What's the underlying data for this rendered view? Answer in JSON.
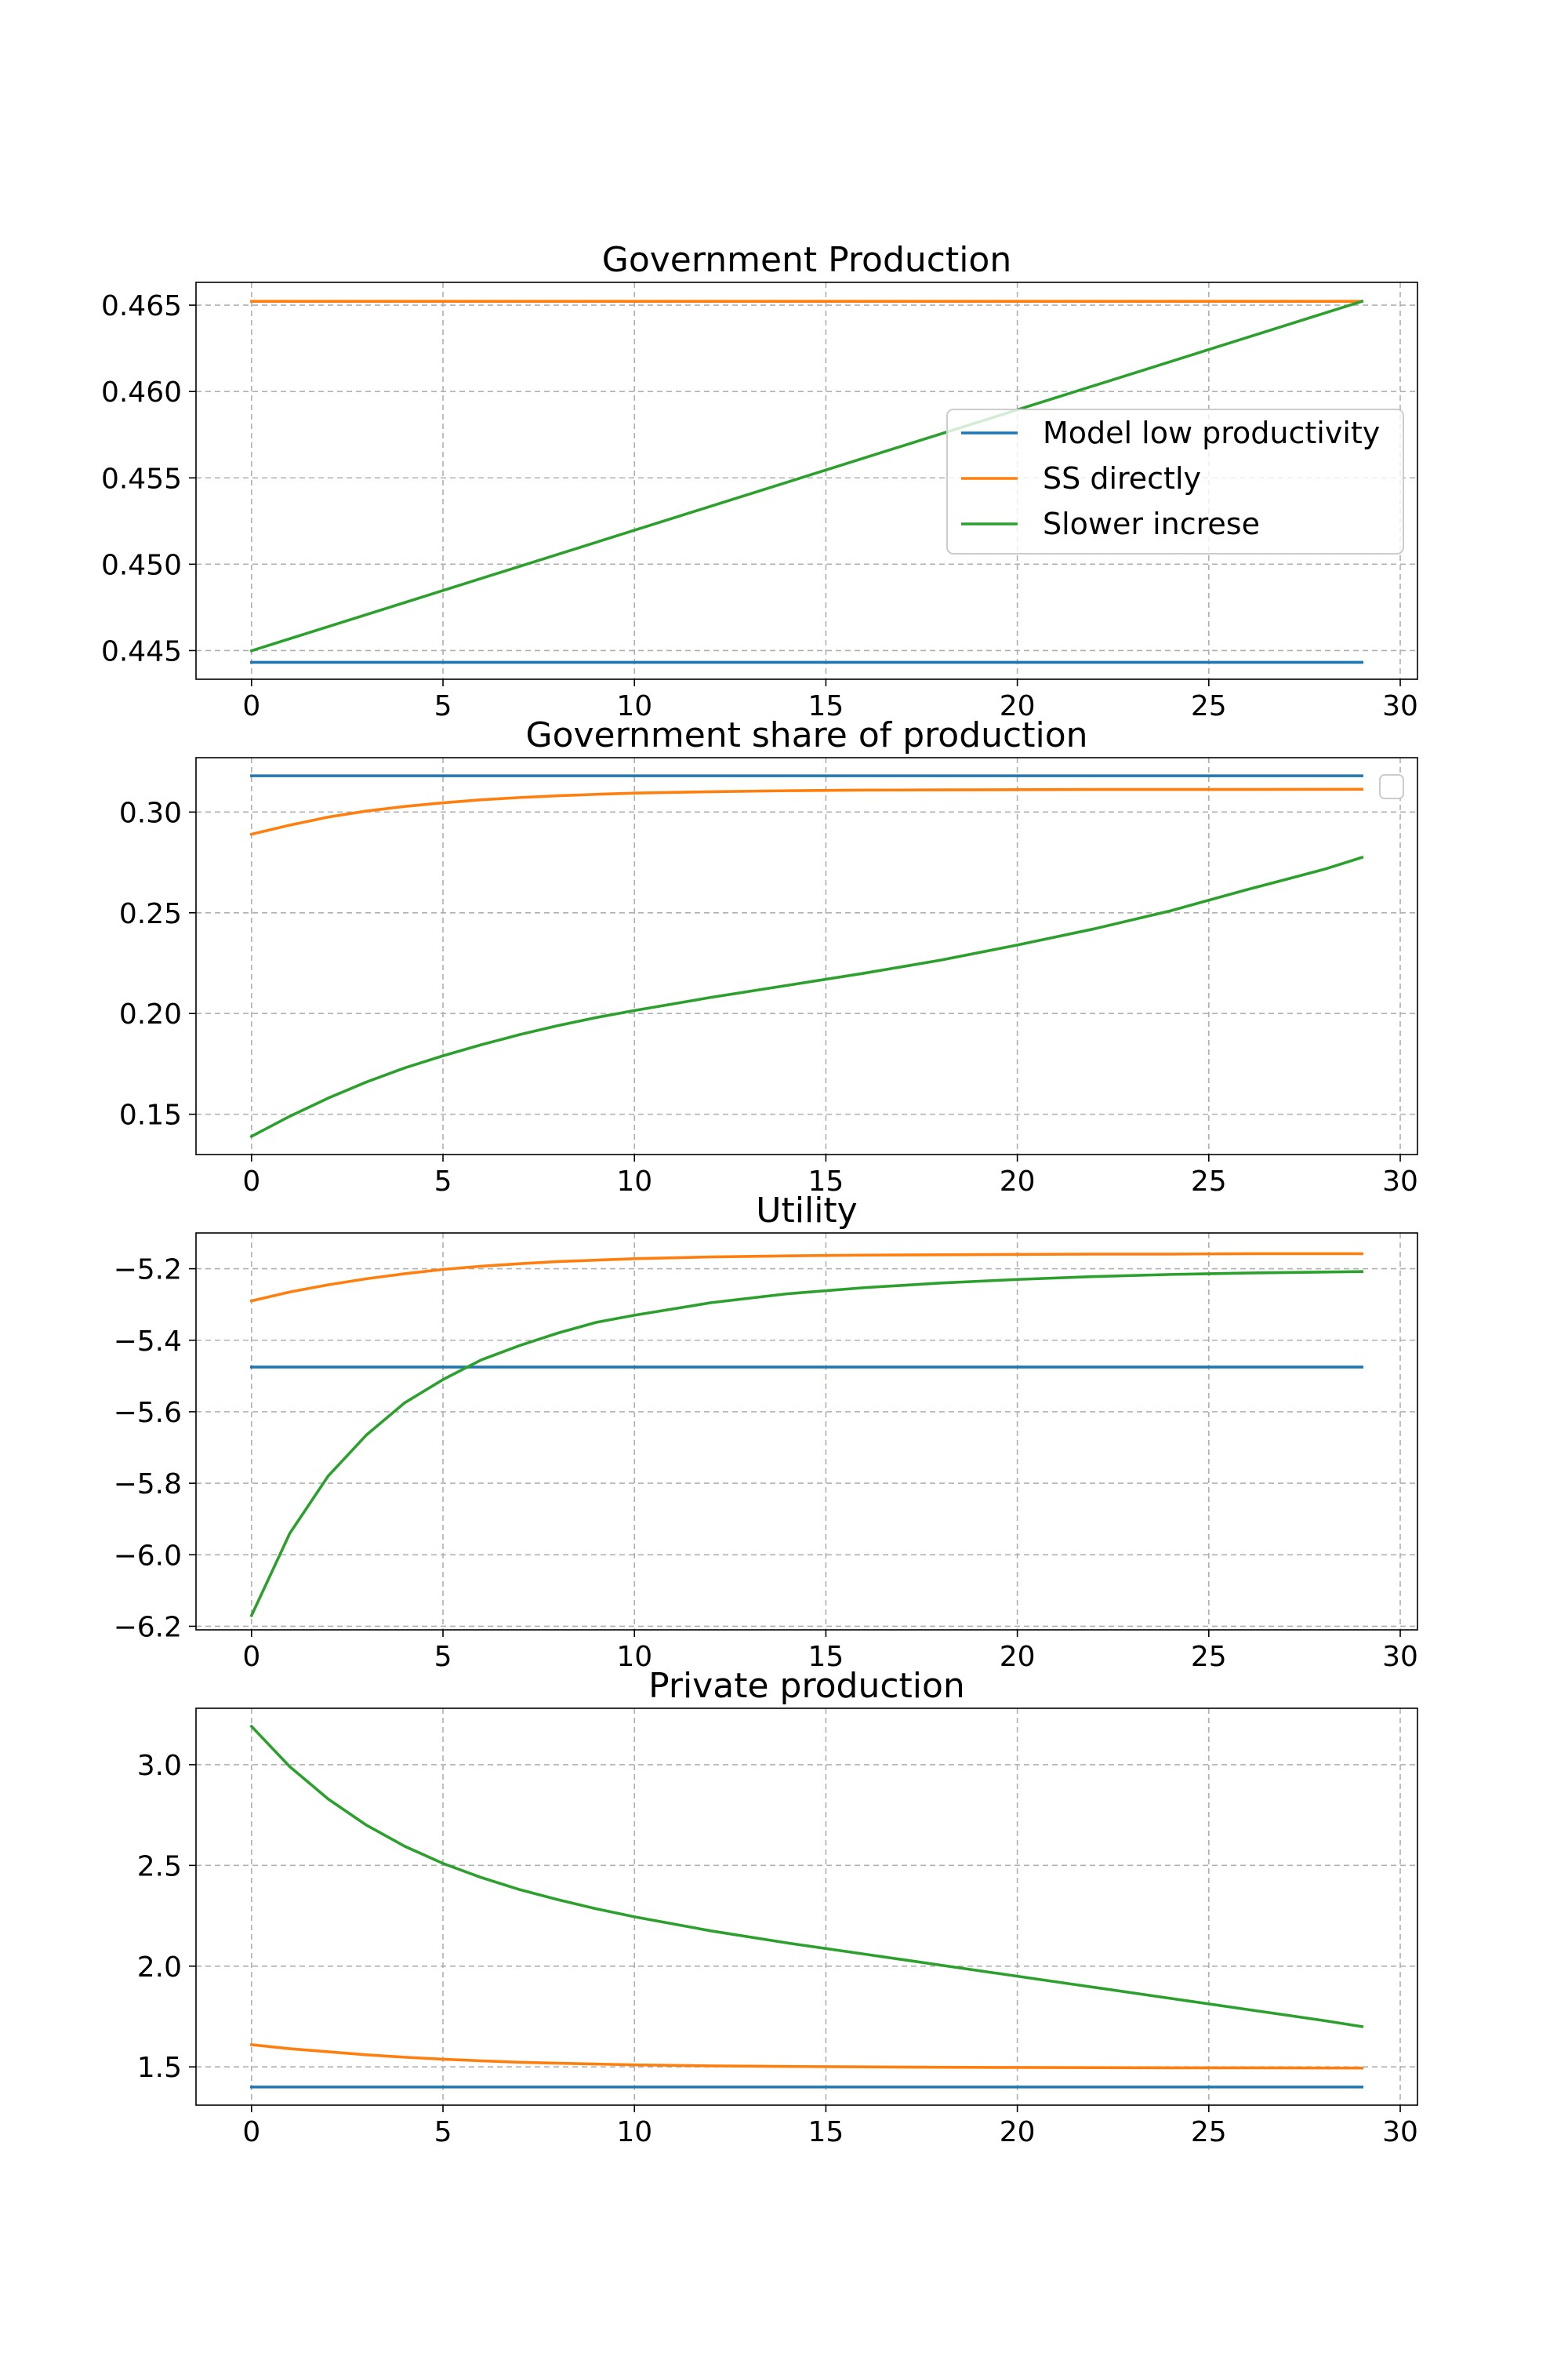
{
  "chart_data": [
    {
      "type": "line",
      "title": "Government Production",
      "xlabel": "",
      "ylabel": "",
      "xlim": [
        -1.45,
        30.45
      ],
      "ylim": [
        0.44334,
        0.46632
      ],
      "xticks": [
        0,
        5,
        10,
        15,
        20,
        25,
        30
      ],
      "xtick_labels": [
        "0",
        "5",
        "10",
        "15",
        "20",
        "25",
        "30"
      ],
      "yticks": [
        0.445,
        0.45,
        0.455,
        0.46,
        0.465
      ],
      "ytick_labels": [
        "0.445",
        "0.450",
        "0.455",
        "0.460",
        "0.465"
      ],
      "grid": true,
      "legend": {
        "placement": "center-right",
        "entries": [
          "Model low productivity",
          "SS directly",
          "Slower increse"
        ]
      },
      "series": [
        {
          "name": "Model low productivity",
          "color": "#1f77b4",
          "x": [
            0,
            29
          ],
          "values": [
            0.44432,
            0.44432
          ]
        },
        {
          "name": "SS directly",
          "color": "#ff7f0e",
          "x": [
            0,
            29
          ],
          "values": [
            0.46522,
            0.46522
          ]
        },
        {
          "name": "Slower increse",
          "color": "#2ca02c",
          "x": [
            0,
            29
          ],
          "values": [
            0.44499,
            0.46522
          ]
        }
      ]
    },
    {
      "type": "line",
      "title": "Government share of production",
      "xlabel": "",
      "ylabel": "",
      "xlim": [
        -1.45,
        30.45
      ],
      "ylim": [
        0.13,
        0.327
      ],
      "xticks": [
        0,
        5,
        10,
        15,
        20,
        25,
        30
      ],
      "xtick_labels": [
        "0",
        "5",
        "10",
        "15",
        "20",
        "25",
        "30"
      ],
      "yticks": [
        0.15,
        0.2,
        0.25,
        0.3
      ],
      "ytick_labels": [
        "0.15",
        "0.20",
        "0.25",
        "0.30"
      ],
      "grid": true,
      "legend": {
        "placement": "upper-right",
        "entries": []
      },
      "series": [
        {
          "name": "Model low productivity",
          "color": "#1f77b4",
          "x": [
            0,
            29
          ],
          "values": [
            0.318,
            0.318
          ]
        },
        {
          "name": "SS directly",
          "color": "#ff7f0e",
          "x": [
            0,
            1,
            2,
            3,
            4,
            5,
            6,
            7,
            8,
            9,
            10,
            12,
            14,
            16,
            18,
            20,
            22,
            24,
            26,
            29
          ],
          "values": [
            0.289,
            0.2935,
            0.2975,
            0.3005,
            0.3028,
            0.3046,
            0.3061,
            0.3072,
            0.3081,
            0.3088,
            0.3094,
            0.3101,
            0.3106,
            0.3109,
            0.311,
            0.3111,
            0.3112,
            0.3112,
            0.3112,
            0.3113
          ]
        },
        {
          "name": "Slower increse",
          "color": "#2ca02c",
          "x": [
            0,
            1,
            2,
            3,
            4,
            5,
            6,
            7,
            8,
            9,
            10,
            12,
            14,
            16,
            18,
            20,
            22,
            24,
            26,
            28,
            29
          ],
          "values": [
            0.139,
            0.149,
            0.158,
            0.166,
            0.173,
            0.179,
            0.1845,
            0.1895,
            0.194,
            0.198,
            0.2015,
            0.208,
            0.214,
            0.22,
            0.2265,
            0.234,
            0.242,
            0.251,
            0.2615,
            0.2715,
            0.2775
          ]
        }
      ]
    },
    {
      "type": "line",
      "title": "Utility",
      "xlabel": "",
      "ylabel": "",
      "xlim": [
        -1.45,
        30.45
      ],
      "ylim": [
        -6.21,
        -5.1
      ],
      "xticks": [
        0,
        5,
        10,
        15,
        20,
        25,
        30
      ],
      "xtick_labels": [
        "0",
        "5",
        "10",
        "15",
        "20",
        "25",
        "30"
      ],
      "yticks": [
        -6.2,
        -6.0,
        -5.8,
        -5.6,
        -5.4,
        -5.2
      ],
      "ytick_labels": [
        "−6.2",
        "−6.0",
        "−5.8",
        "−5.6",
        "−5.4",
        "−5.2"
      ],
      "grid": true,
      "series": [
        {
          "name": "Model low productivity",
          "color": "#1f77b4",
          "x": [
            0,
            29
          ],
          "values": [
            -5.475,
            -5.475
          ]
        },
        {
          "name": "SS directly",
          "color": "#ff7f0e",
          "x": [
            0,
            1,
            2,
            3,
            4,
            5,
            6,
            7,
            8,
            9,
            10,
            12,
            14,
            16,
            18,
            20,
            22,
            24,
            26,
            29
          ],
          "values": [
            -5.29,
            -5.265,
            -5.245,
            -5.228,
            -5.214,
            -5.202,
            -5.193,
            -5.186,
            -5.18,
            -5.176,
            -5.172,
            -5.167,
            -5.164,
            -5.162,
            -5.161,
            -5.16,
            -5.159,
            -5.159,
            -5.158,
            -5.158
          ]
        },
        {
          "name": "Slower increse",
          "color": "#2ca02c",
          "x": [
            0,
            1,
            2,
            3,
            4,
            5,
            6,
            7,
            8,
            9,
            10,
            12,
            14,
            16,
            18,
            20,
            22,
            24,
            26,
            29
          ],
          "values": [
            -6.17,
            -5.94,
            -5.78,
            -5.665,
            -5.575,
            -5.51,
            -5.455,
            -5.415,
            -5.38,
            -5.35,
            -5.33,
            -5.295,
            -5.27,
            -5.253,
            -5.24,
            -5.23,
            -5.222,
            -5.216,
            -5.212,
            -5.208
          ]
        }
      ]
    },
    {
      "type": "line",
      "title": "Private production",
      "xlabel": "",
      "ylabel": "",
      "xlim": [
        -1.45,
        30.45
      ],
      "ylim": [
        1.31,
        3.28
      ],
      "xticks": [
        0,
        5,
        10,
        15,
        20,
        25,
        30
      ],
      "xtick_labels": [
        "0",
        "5",
        "10",
        "15",
        "20",
        "25",
        "30"
      ],
      "yticks": [
        1.5,
        2.0,
        2.5,
        3.0
      ],
      "ytick_labels": [
        "1.5",
        "2.0",
        "2.5",
        "3.0"
      ],
      "grid": true,
      "series": [
        {
          "name": "Model low productivity",
          "color": "#1f77b4",
          "x": [
            0,
            29
          ],
          "values": [
            1.4,
            1.4
          ]
        },
        {
          "name": "SS directly",
          "color": "#ff7f0e",
          "x": [
            0,
            1,
            2,
            3,
            4,
            5,
            6,
            7,
            8,
            9,
            10,
            12,
            14,
            16,
            18,
            20,
            22,
            24,
            26,
            29
          ],
          "values": [
            1.61,
            1.59,
            1.575,
            1.56,
            1.548,
            1.538,
            1.53,
            1.523,
            1.518,
            1.514,
            1.51,
            1.505,
            1.502,
            1.5,
            1.498,
            1.497,
            1.496,
            1.495,
            1.495,
            1.494
          ]
        },
        {
          "name": "Slower increse",
          "color": "#2ca02c",
          "x": [
            0,
            1,
            2,
            3,
            4,
            5,
            6,
            7,
            8,
            9,
            10,
            12,
            14,
            16,
            18,
            20,
            22,
            24,
            26,
            28,
            29
          ],
          "values": [
            3.19,
            2.99,
            2.83,
            2.7,
            2.595,
            2.51,
            2.44,
            2.38,
            2.33,
            2.285,
            2.245,
            2.175,
            2.115,
            2.06,
            2.005,
            1.95,
            1.895,
            1.84,
            1.785,
            1.73,
            1.7
          ]
        }
      ]
    }
  ]
}
